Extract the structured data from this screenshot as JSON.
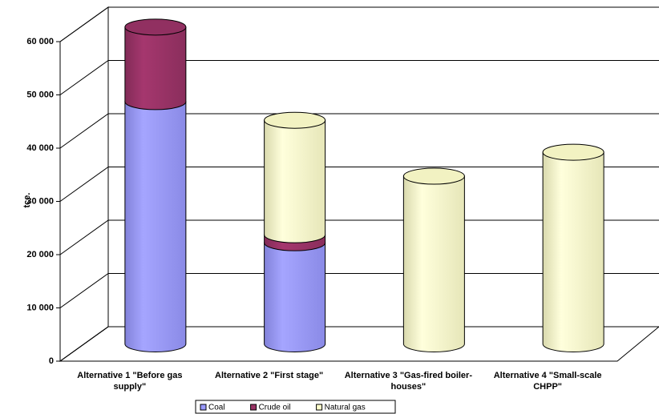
{
  "chart_data": {
    "type": "bar3d_stacked_cylinder",
    "y_label": "tce.",
    "categories": [
      "Alternative 1 \"Before gas supply\"",
      "Alternative 2 \"First stage\"",
      "Alternative 3 \"Gas-fired boiler-houses\"",
      "Alternative 4 \"Small-scale CHPP\""
    ],
    "series": [
      {
        "name": "Coal",
        "color": "#9999ff",
        "values": [
          45500,
          19000,
          0,
          0
        ]
      },
      {
        "name": "Crude oil",
        "color": "#993366",
        "values": [
          14000,
          1500,
          0,
          0
        ]
      },
      {
        "name": "Natural gas",
        "color": "#ffffcc",
        "values": [
          0,
          21500,
          31500,
          36000
        ]
      }
    ],
    "ylim": [
      0,
      60000
    ],
    "yticks": [
      0,
      {
        "value": 10000,
        "label": "10 000"
      },
      {
        "value": 20000,
        "label": "20 000"
      },
      {
        "value": 30000,
        "label": "30 000"
      },
      {
        "value": 40000,
        "label": "40 000"
      },
      {
        "value": 50000,
        "label": "50 000"
      },
      {
        "value": 60000,
        "label": "60 000"
      }
    ],
    "grid": true,
    "legend": "bottom"
  }
}
